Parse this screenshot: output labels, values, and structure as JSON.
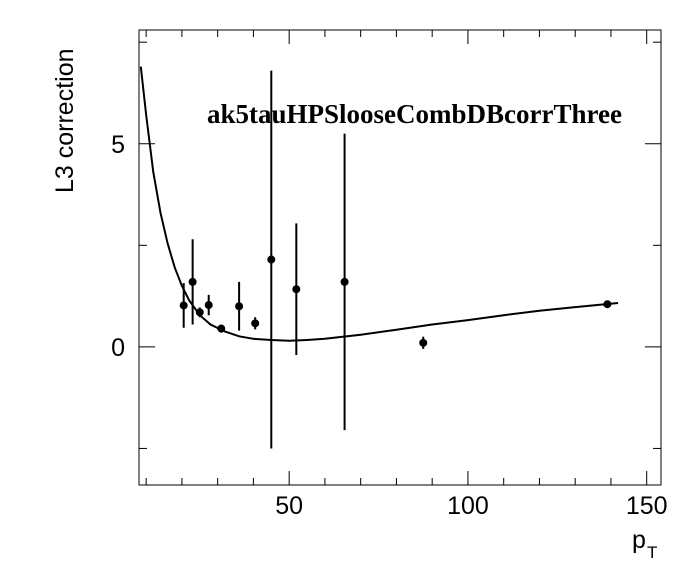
{
  "chart_data": {
    "type": "scatter",
    "title": "ak5tauHPSlooseCombDBcorrThree",
    "xlabel_main": "p",
    "xlabel_sub": "T",
    "ylabel": "L3 correction",
    "xlim": [
      8,
      154
    ],
    "ylim": [
      -3.4,
      7.8
    ],
    "x_ticks": [
      50,
      100,
      150
    ],
    "x_tick_labels": [
      "50",
      "100",
      "150"
    ],
    "y_ticks": [
      0,
      5
    ],
    "y_tick_labels": [
      "0",
      "5"
    ],
    "grid": false,
    "legend": false,
    "points": [
      {
        "x": 20.5,
        "y": 1.02,
        "yerr": 0.55
      },
      {
        "x": 23.0,
        "y": 1.6,
        "yerr": 1.05
      },
      {
        "x": 25.0,
        "y": 0.85,
        "yerr": 0.12
      },
      {
        "x": 27.5,
        "y": 1.03,
        "yerr": 0.25
      },
      {
        "x": 31.0,
        "y": 0.45,
        "yerr": 0.1
      },
      {
        "x": 36.0,
        "y": 1.0,
        "yerr": 0.6
      },
      {
        "x": 40.5,
        "y": 0.58,
        "yerr": 0.15
      },
      {
        "x": 45.0,
        "y": 2.15,
        "yerr": 4.65
      },
      {
        "x": 52.0,
        "y": 1.42,
        "yerr": 1.62
      },
      {
        "x": 65.5,
        "y": 1.6,
        "yerr": 3.65
      },
      {
        "x": 87.5,
        "y": 0.1,
        "yerr": 0.15
      },
      {
        "x": 139.0,
        "y": 1.05,
        "yerr": 0.08
      }
    ],
    "fit_curve": {
      "x": [
        8.5,
        10,
        12,
        14,
        16,
        18,
        20,
        22,
        25,
        28,
        32,
        36,
        40,
        45,
        50,
        55,
        60,
        70,
        80,
        90,
        100,
        110,
        120,
        130,
        142
      ],
      "y": [
        6.9,
        5.7,
        4.3,
        3.3,
        2.55,
        1.95,
        1.5,
        1.15,
        0.78,
        0.55,
        0.38,
        0.26,
        0.2,
        0.17,
        0.15,
        0.17,
        0.2,
        0.3,
        0.42,
        0.55,
        0.66,
        0.78,
        0.89,
        0.98,
        1.08
      ]
    }
  }
}
